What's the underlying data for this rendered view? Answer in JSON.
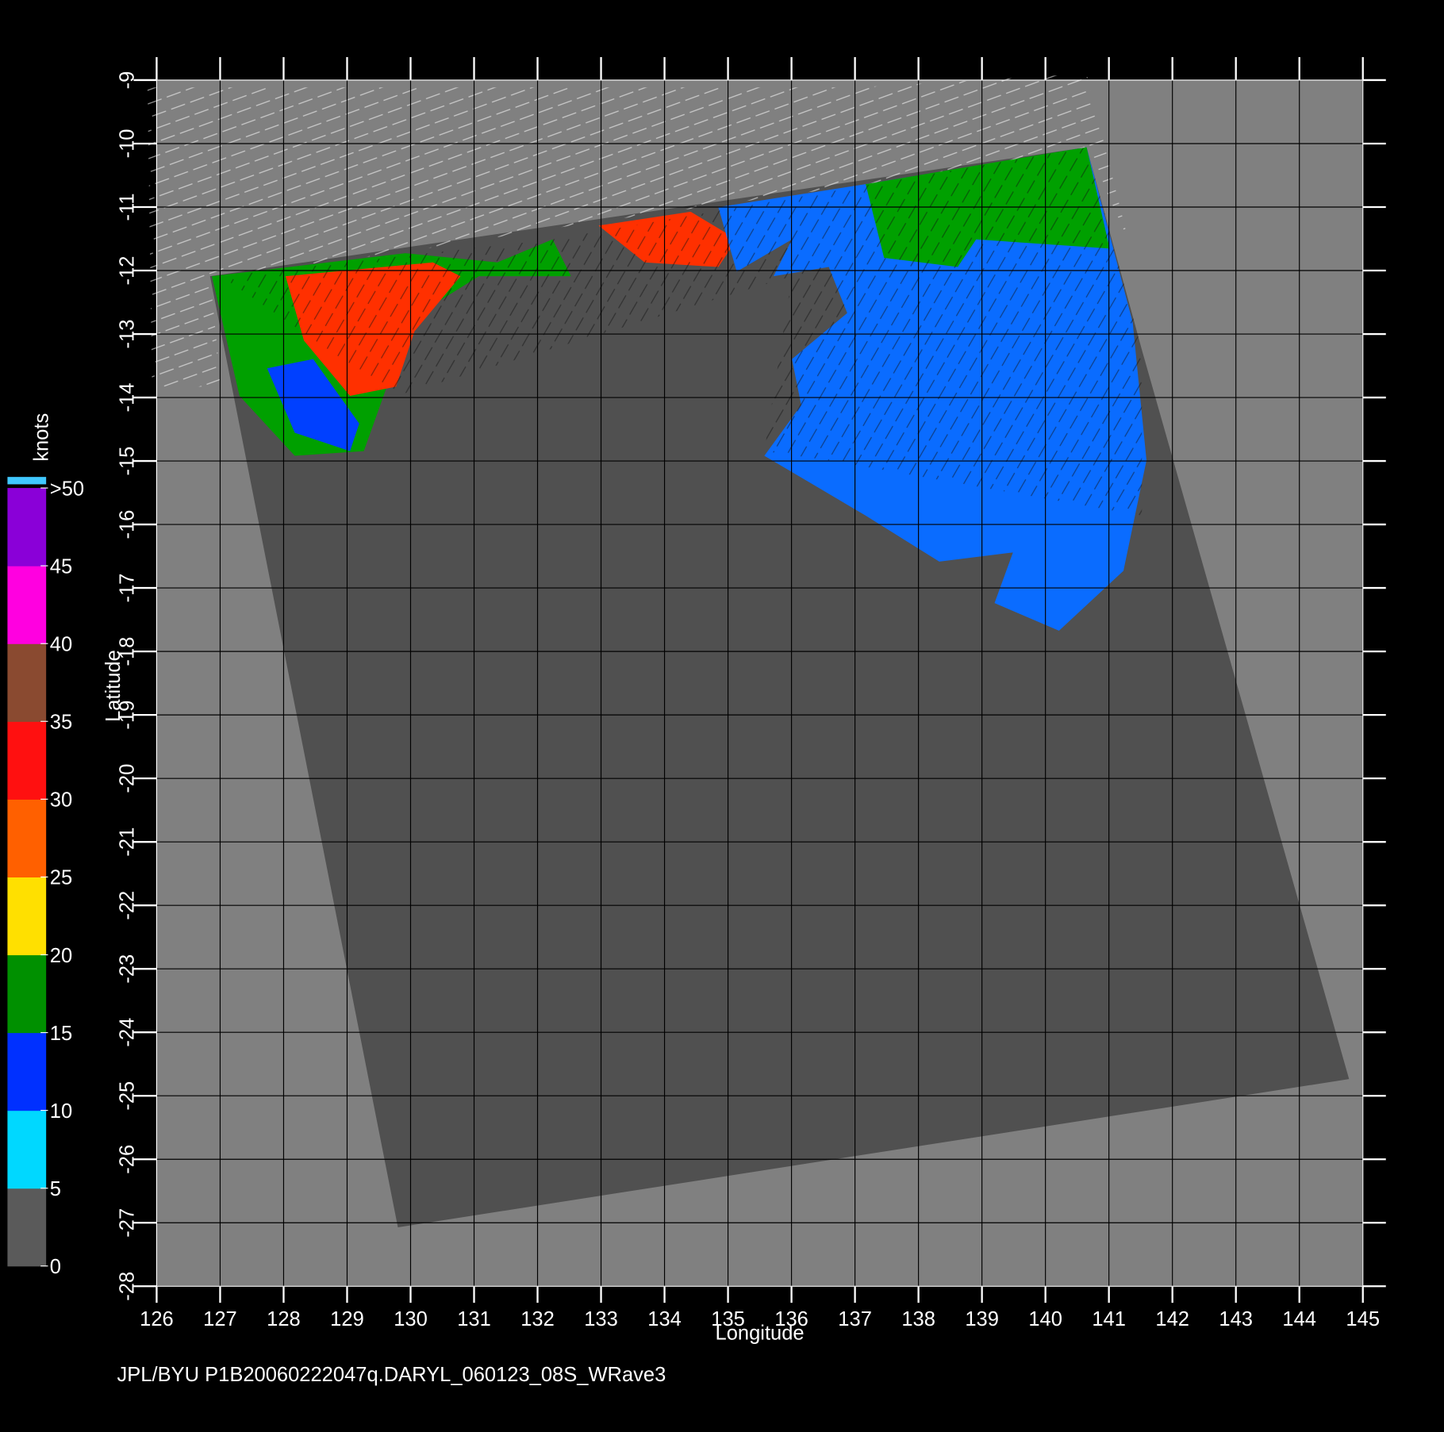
{
  "chart_data": {
    "type": "map",
    "xlabel": "Longitude",
    "ylabel": "Latitude",
    "xlim": [
      126,
      145
    ],
    "ylim": [
      -28,
      -9
    ],
    "xticks": [
      126,
      127,
      128,
      129,
      130,
      131,
      132,
      133,
      134,
      135,
      136,
      137,
      138,
      139,
      140,
      141,
      142,
      143,
      144,
      145
    ],
    "yticks": [
      -9,
      -10,
      -11,
      -12,
      -13,
      -14,
      -15,
      -16,
      -17,
      -18,
      -19,
      -20,
      -21,
      -22,
      -23,
      -24,
      -25,
      -26,
      -27,
      -28
    ],
    "grid": true,
    "colorbar": {
      "label": "knots",
      "lim": [
        0,
        50
      ],
      "ticks": [
        0,
        5,
        10,
        15,
        20,
        25,
        30,
        35,
        40,
        45,
        {
          "value": 50,
          "label": ">50"
        }
      ],
      "colors": [
        "#5a5a5a",
        "#00d8ff",
        "#0030ff",
        "#009000",
        "#ffe000",
        "#ff6000",
        "#ff1010",
        "#8a4a30",
        "#ff00e0",
        "#8a00d8"
      ]
    },
    "footer": "JPL/BYU  P1B20060222047q.DARYL_060123_08S_WRave3"
  }
}
